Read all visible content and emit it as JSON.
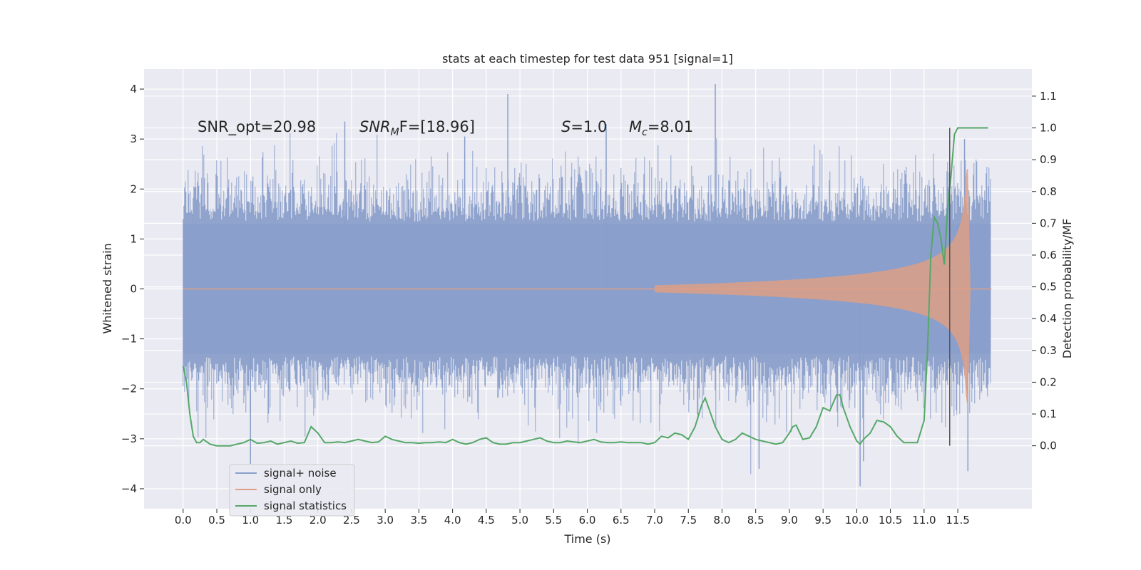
{
  "chart_data": {
    "type": "line",
    "title": "stats at each timestep for test data 951 [signal=1]",
    "xlabel": "Time (s)",
    "ylabel_left": "Whitened strain",
    "ylabel_right": "Detection probability/MF",
    "xlim": [
      -0.58,
      12.6
    ],
    "ylim_left": [
      -4.4,
      4.4
    ],
    "ylim_right": [
      -0.198,
      1.185
    ],
    "x_ticks": [
      0.0,
      0.5,
      1.0,
      1.5,
      2.0,
      2.5,
      3.0,
      3.5,
      4.0,
      4.5,
      5.0,
      5.5,
      6.0,
      6.5,
      7.0,
      7.5,
      8.0,
      8.5,
      9.0,
      9.5,
      10.0,
      10.5,
      11.0,
      11.5
    ],
    "x_tick_labels": [
      "0.0",
      "0.5",
      "1.0",
      "1.5",
      "2.0",
      "2.5",
      "3.0",
      "3.5",
      "4.0",
      "4.5",
      "5.0",
      "5.5",
      "6.0",
      "6.5",
      "7.0",
      "7.5",
      "8.0",
      "8.5",
      "9.0",
      "9.5",
      "10.0",
      "10.5",
      "11.0",
      "11.5"
    ],
    "y_left_ticks": [
      -4,
      -3,
      -2,
      -1,
      0,
      1,
      2,
      3,
      4
    ],
    "y_left_tick_labels": [
      "−4",
      "−3",
      "−2",
      "−1",
      "0",
      "1",
      "2",
      "3",
      "4"
    ],
    "y_right_ticks": [
      0.0,
      0.1,
      0.2,
      0.3,
      0.4,
      0.5,
      0.6,
      0.7,
      0.8,
      0.9,
      1.0,
      1.1
    ],
    "y_right_tick_labels": [
      "0.0",
      "0.1",
      "0.2",
      "0.3",
      "0.4",
      "0.5",
      "0.6",
      "0.7",
      "0.8",
      "0.9",
      "1.0",
      "1.1"
    ],
    "annotations": {
      "snr_opt": "SNR_opt=20.98",
      "snr_mf_main": "SNR",
      "snr_mf_sub": "M",
      "snr_mf_rest": "F=[18.96]",
      "s_var": "S",
      "s_val": "=1.0",
      "mc_var": "M",
      "mc_sub": "c",
      "mc_val": "=8.01"
    },
    "legend": {
      "placement": "lower-left",
      "entries": [
        "signal+ noise",
        "signal only",
        "signal statistics"
      ]
    },
    "vertical_marker_x": 11.38,
    "series": [
      {
        "name": "signal+ noise",
        "axis": "left",
        "color": "#8a9fca",
        "t_start": 0.0,
        "t_end": 11.99,
        "typical_band": [
          -1.3,
          1.3
        ],
        "spikes": [
          {
            "t": 2.4,
            "v": 3.35
          },
          {
            "t": 4.18,
            "v": 3.05
          },
          {
            "t": 4.82,
            "v": 3.9
          },
          {
            "t": 6.28,
            "v": 3.3
          },
          {
            "t": 7.9,
            "v": 4.1
          },
          {
            "t": 11.6,
            "v": 3.0
          },
          {
            "t": 1.0,
            "v": -3.5
          },
          {
            "t": 8.55,
            "v": -3.6
          },
          {
            "t": 10.05,
            "v": -3.95
          },
          {
            "t": 10.1,
            "v": -3.45
          },
          {
            "t": 11.65,
            "v": -3.65
          }
        ]
      },
      {
        "name": "signal only",
        "axis": "left",
        "color": "#dd9f86",
        "chirp_start": 7.0,
        "merger_time": 11.65,
        "peak_amplitude": 2.4
      },
      {
        "name": "signal statistics",
        "axis": "right",
        "color": "#55a868",
        "x": [
          0.0,
          0.05,
          0.1,
          0.15,
          0.2,
          0.25,
          0.3,
          0.4,
          0.5,
          0.6,
          0.7,
          0.8,
          0.9,
          1.0,
          1.1,
          1.2,
          1.3,
          1.4,
          1.5,
          1.6,
          1.7,
          1.8,
          1.9,
          2.0,
          2.1,
          2.2,
          2.3,
          2.4,
          2.5,
          2.6,
          2.7,
          2.8,
          2.9,
          3.0,
          3.1,
          3.2,
          3.3,
          3.4,
          3.5,
          3.6,
          3.7,
          3.8,
          3.9,
          4.0,
          4.1,
          4.2,
          4.3,
          4.4,
          4.5,
          4.6,
          4.7,
          4.8,
          4.9,
          5.0,
          5.1,
          5.2,
          5.3,
          5.4,
          5.5,
          5.6,
          5.7,
          5.8,
          5.9,
          6.0,
          6.1,
          6.2,
          6.3,
          6.4,
          6.5,
          6.6,
          6.7,
          6.8,
          6.9,
          7.0,
          7.1,
          7.2,
          7.3,
          7.4,
          7.5,
          7.6,
          7.7,
          7.75,
          7.8,
          7.9,
          8.0,
          8.1,
          8.2,
          8.3,
          8.4,
          8.5,
          8.6,
          8.7,
          8.8,
          8.9,
          9.0,
          9.05,
          9.1,
          9.2,
          9.3,
          9.4,
          9.5,
          9.6,
          9.7,
          9.75,
          9.8,
          9.9,
          10.0,
          10.05,
          10.1,
          10.2,
          10.3,
          10.4,
          10.5,
          10.6,
          10.7,
          10.8,
          10.9,
          11.0,
          11.05,
          11.1,
          11.15,
          11.2,
          11.25,
          11.3,
          11.35,
          11.4,
          11.45,
          11.5,
          11.6,
          11.7,
          11.8,
          11.9,
          11.95
        ],
        "values": [
          0.25,
          0.2,
          0.1,
          0.03,
          0.01,
          0.01,
          0.02,
          0.005,
          0.0,
          0.0,
          0.0,
          0.005,
          0.01,
          0.02,
          0.008,
          0.01,
          0.015,
          0.005,
          0.01,
          0.015,
          0.008,
          0.01,
          0.06,
          0.04,
          0.01,
          0.01,
          0.012,
          0.01,
          0.015,
          0.02,
          0.015,
          0.01,
          0.012,
          0.03,
          0.02,
          0.015,
          0.01,
          0.01,
          0.008,
          0.01,
          0.01,
          0.012,
          0.01,
          0.02,
          0.01,
          0.005,
          0.01,
          0.02,
          0.025,
          0.01,
          0.005,
          0.005,
          0.01,
          0.01,
          0.015,
          0.02,
          0.025,
          0.015,
          0.01,
          0.01,
          0.015,
          0.012,
          0.01,
          0.015,
          0.02,
          0.012,
          0.01,
          0.01,
          0.012,
          0.01,
          0.01,
          0.01,
          0.005,
          0.01,
          0.03,
          0.025,
          0.04,
          0.035,
          0.02,
          0.06,
          0.13,
          0.15,
          0.12,
          0.06,
          0.02,
          0.01,
          0.02,
          0.04,
          0.03,
          0.02,
          0.015,
          0.01,
          0.005,
          0.01,
          0.04,
          0.06,
          0.065,
          0.02,
          0.025,
          0.06,
          0.12,
          0.11,
          0.16,
          0.16,
          0.12,
          0.06,
          0.015,
          0.005,
          0.02,
          0.04,
          0.08,
          0.075,
          0.06,
          0.03,
          0.01,
          0.01,
          0.01,
          0.08,
          0.3,
          0.6,
          0.72,
          0.7,
          0.65,
          0.57,
          0.75,
          0.85,
          0.98,
          1.0,
          1.0,
          1.0,
          1.0,
          1.0,
          1.0
        ]
      }
    ]
  }
}
